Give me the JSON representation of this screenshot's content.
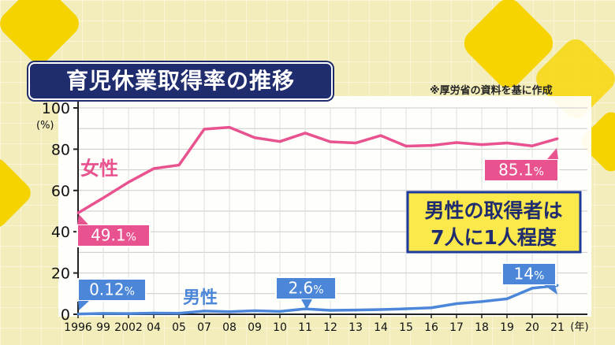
{
  "title": "育児休業取得率の推移",
  "source": "※厚労省の資料を基に作成",
  "colors": {
    "female": "#e8528f",
    "male": "#4b86d9",
    "title_bg": "#1f2c6e",
    "callout_bg": "#fbe84a",
    "callout_border": "#1f3a9e"
  },
  "chart_data": {
    "type": "line",
    "title": "育児休業取得率の推移",
    "x_tick_labels": [
      "1996",
      "99",
      "2002",
      "04",
      "05",
      "07",
      "08",
      "09",
      "10",
      "11",
      "12",
      "13",
      "14",
      "15",
      "16",
      "17",
      "18",
      "19",
      "20",
      "21"
    ],
    "x_unit": "(年)",
    "y_unit": "(%)",
    "y_ticks": [
      0,
      20,
      40,
      60,
      80,
      100
    ],
    "ylim": [
      0,
      100
    ],
    "grid": true,
    "series": [
      {
        "name": "女性",
        "values": [
          49.1,
          56.4,
          64.0,
          70.6,
          72.3,
          89.7,
          90.6,
          85.6,
          83.7,
          87.8,
          83.6,
          83.0,
          86.6,
          81.5,
          81.8,
          83.2,
          82.2,
          83.0,
          81.6,
          85.1
        ]
      },
      {
        "name": "男性",
        "values": [
          0.12,
          0.42,
          0.33,
          0.56,
          0.5,
          1.56,
          1.23,
          1.72,
          1.38,
          2.63,
          1.89,
          2.03,
          2.3,
          2.65,
          3.16,
          5.14,
          6.16,
          7.48,
          12.65,
          13.97
        ]
      }
    ],
    "annotations": {
      "female_start": "49.1",
      "female_end": "85.1",
      "male_start": "0.12",
      "male_mid": "2.6",
      "male_end": "14",
      "percent": "%"
    },
    "callout": {
      "line1": "男性の取得者は",
      "line2": "7人に1人程度"
    }
  }
}
